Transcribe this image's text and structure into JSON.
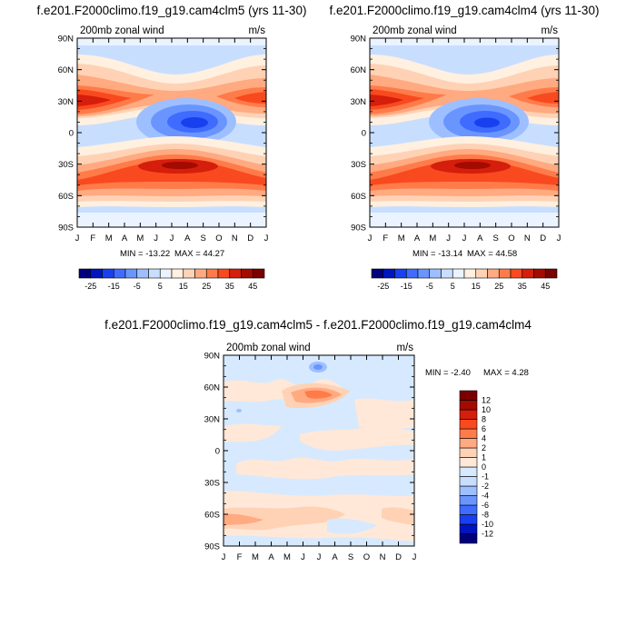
{
  "chart_data": {
    "type": "heatmap",
    "panels": [
      {
        "id": "clm5",
        "title": "f.e201.F2000climo.f19_g19.cam4clm5 (yrs 11-30)",
        "left_label": "200mb zonal wind",
        "right_label": "m/s",
        "min_text": "MIN = -13.22",
        "max_text": "MAX =  44.27",
        "min": -13.22,
        "max": 44.27,
        "xlabel_ticks": [
          "J",
          "F",
          "M",
          "A",
          "M",
          "J",
          "J",
          "A",
          "S",
          "O",
          "N",
          "D",
          "J"
        ],
        "ylabel_ticks": [
          "90N",
          "60N",
          "30N",
          "0",
          "30S",
          "60S",
          "90S"
        ],
        "y_range": [
          -90,
          90
        ],
        "x_range": [
          "Jan",
          "Jan"
        ]
      },
      {
        "id": "clm4",
        "title": "f.e201.F2000climo.f19_g19.cam4clm4 (yrs 11-30)",
        "left_label": "200mb zonal wind",
        "right_label": "m/s",
        "min_text": "MIN = -13.14",
        "max_text": "MAX =  44.58",
        "min": -13.14,
        "max": 44.58,
        "xlabel_ticks": [
          "J",
          "F",
          "M",
          "A",
          "M",
          "J",
          "J",
          "A",
          "S",
          "O",
          "N",
          "D",
          "J"
        ],
        "ylabel_ticks": [
          "90N",
          "60N",
          "30N",
          "0",
          "30S",
          "60S",
          "90S"
        ],
        "y_range": [
          -90,
          90
        ],
        "x_range": [
          "Jan",
          "Jan"
        ]
      },
      {
        "id": "diff",
        "title": "f.e201.F2000climo.f19_g19.cam4clm5 - f.e201.F2000climo.f19_g19.cam4clm4",
        "left_label": "200mb zonal wind",
        "right_label": "m/s",
        "min_text": "MIN =  -2.40",
        "max_text": "MAX =   4.28",
        "min": -2.4,
        "max": 4.28,
        "xlabel_ticks": [
          "J",
          "F",
          "M",
          "A",
          "M",
          "J",
          "J",
          "A",
          "S",
          "O",
          "N",
          "D",
          "J"
        ],
        "ylabel_ticks": [
          "90N",
          "60N",
          "30N",
          "0",
          "30S",
          "60S",
          "90S"
        ],
        "y_range": [
          -90,
          90
        ],
        "x_range": [
          "Jan",
          "Jan"
        ]
      }
    ],
    "colorbar_abs": {
      "orientation": "horizontal",
      "levels": [
        -25,
        -20,
        -15,
        -10,
        -5,
        0,
        5,
        10,
        15,
        20,
        25,
        30,
        35,
        40,
        45
      ],
      "labels": [
        "-25",
        "-15",
        "-5",
        "5",
        "15",
        "25",
        "35",
        "45"
      ],
      "colors": [
        "#00007f",
        "#0015bf",
        "#1840ee",
        "#3f6cff",
        "#6a95ff",
        "#9ebfff",
        "#c8deff",
        "#eaf3ff",
        "#fff0e0",
        "#ffd2b5",
        "#ffaa80",
        "#ff7b4a",
        "#f9491f",
        "#d51e0b",
        "#a30a00",
        "#7a0000"
      ]
    },
    "colorbar_diff": {
      "orientation": "vertical",
      "levels": [
        -12,
        -10,
        -8,
        -6,
        -4,
        -2,
        -1,
        0,
        1,
        2,
        4,
        6,
        8,
        10,
        12
      ],
      "labels": [
        "-12",
        "-10",
        "-8",
        "-6",
        "-4",
        "-2",
        "-1",
        "0",
        "1",
        "2",
        "4",
        "6",
        "8",
        "10",
        "12"
      ],
      "colors": [
        "#00007f",
        "#0015bf",
        "#1840ee",
        "#3f6cff",
        "#6a95ff",
        "#9ebfff",
        "#c8deff",
        "#d6e9ff",
        "#ffe8d8",
        "#ffd2b5",
        "#ffaa80",
        "#ff7b4a",
        "#f9491f",
        "#d51e0b",
        "#a30a00",
        "#7a0000"
      ]
    }
  }
}
